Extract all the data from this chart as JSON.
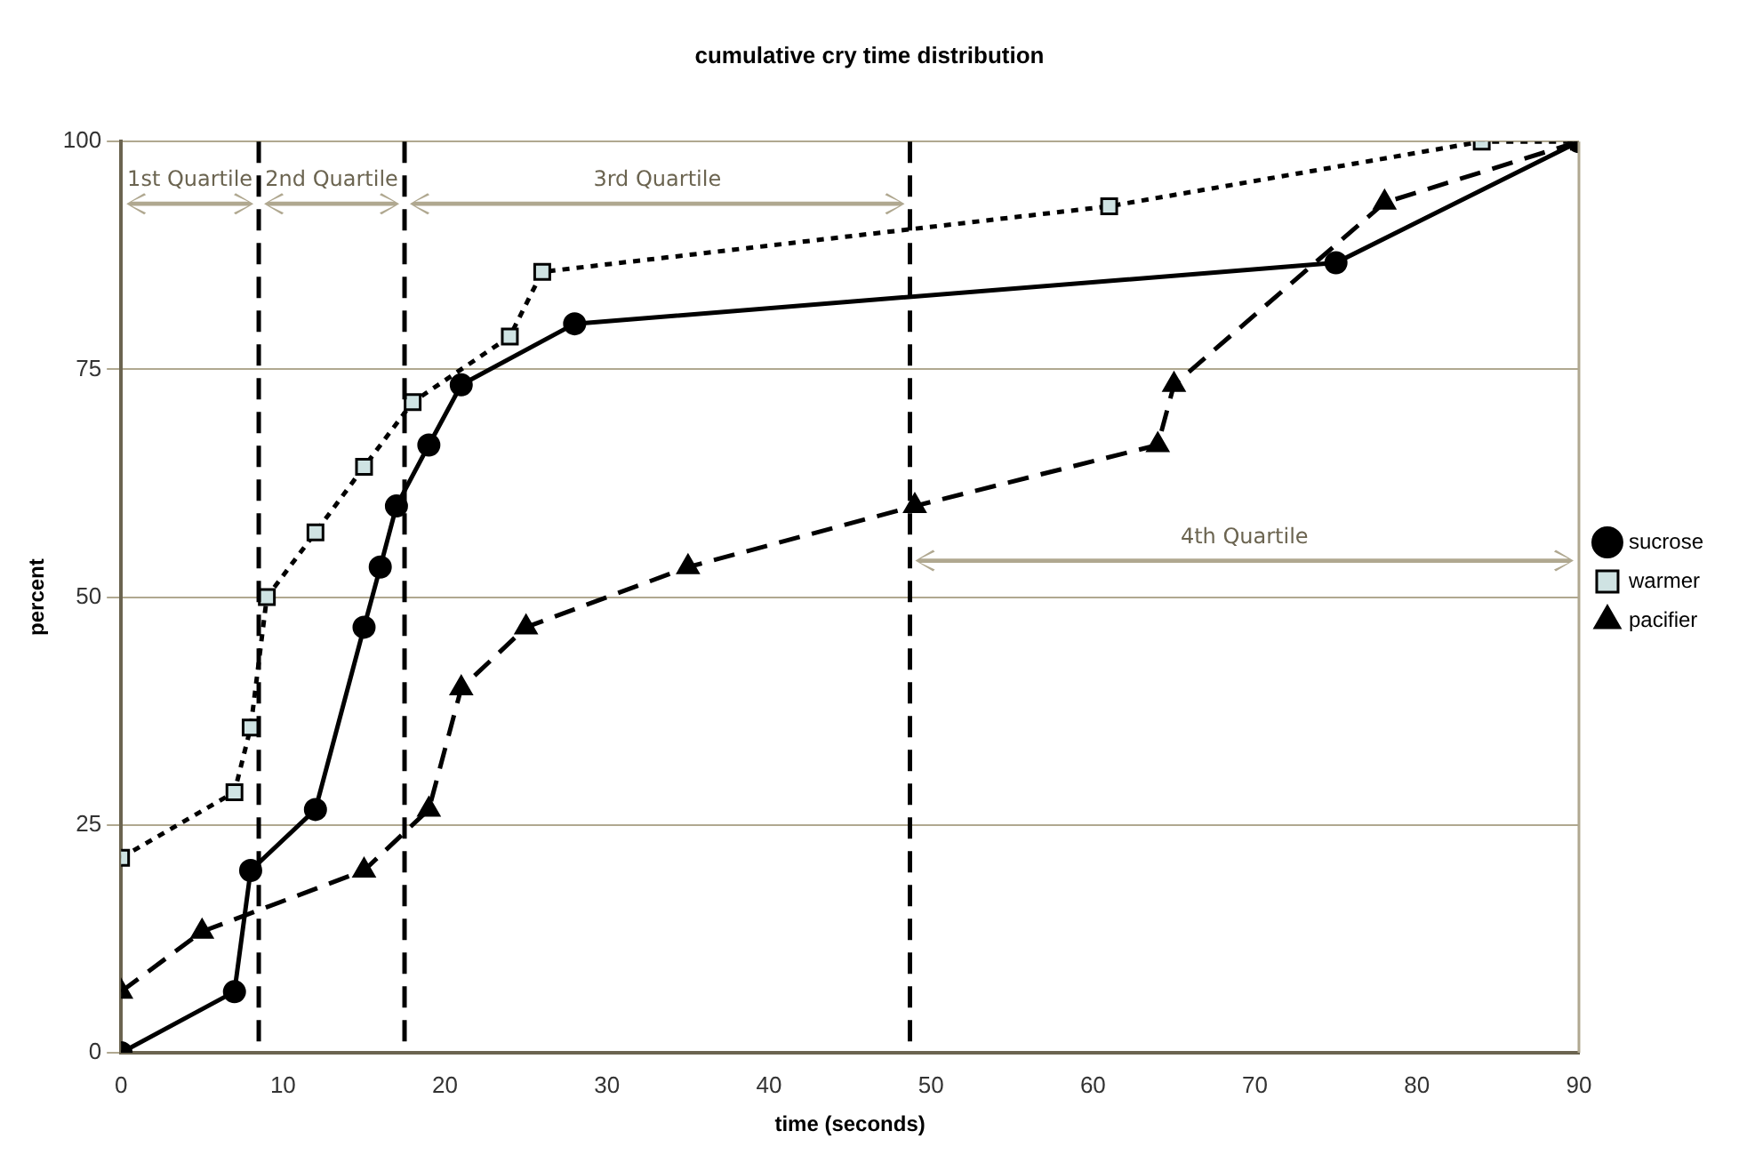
{
  "chart_data": {
    "type": "line",
    "title": "cumulative cry time distribution",
    "xlabel": "time (seconds)",
    "ylabel": "percent",
    "xlim": [
      0,
      90
    ],
    "xticks": [
      0,
      10,
      20,
      30,
      40,
      50,
      60,
      70,
      80,
      90
    ],
    "ylim": [
      0,
      100
    ],
    "yticks": [
      0,
      25,
      50,
      75,
      100
    ],
    "grid": "y",
    "legend": "right",
    "series": [
      {
        "name": "sucrose",
        "color": "#000000",
        "marker": "circle",
        "line_style": "solid",
        "x": [
          0,
          7,
          8,
          12,
          15,
          16,
          17,
          19,
          21,
          28,
          75,
          90
        ],
        "values": [
          0,
          6.7,
          20,
          26.7,
          46.7,
          53.3,
          60,
          66.7,
          73.3,
          80,
          86.7,
          100
        ]
      },
      {
        "name": "warmer",
        "color": "#000000",
        "marker": "square",
        "line_style": "dotted",
        "x": [
          0,
          7,
          8,
          9,
          12,
          15,
          18,
          24,
          26,
          61,
          84,
          90
        ],
        "values": [
          21.4,
          28.6,
          35.7,
          50,
          57.1,
          64.3,
          71.4,
          78.6,
          85.7,
          92.9,
          100,
          100
        ]
      },
      {
        "name": "pacifier",
        "color": "#000000",
        "marker": "triangle",
        "line_style": "dashed",
        "x": [
          0,
          5,
          15,
          19,
          21,
          25,
          35,
          49,
          64,
          65,
          78,
          90
        ],
        "values": [
          6.7,
          13.3,
          20,
          26.7,
          40,
          46.7,
          53.3,
          60,
          66.7,
          73.3,
          93.3,
          100
        ]
      }
    ],
    "ref_lines": [
      {
        "axis": "x",
        "value": 8.5,
        "color": "#000000",
        "line_style": "dashed"
      },
      {
        "axis": "x",
        "value": 17.5,
        "color": "#000000",
        "line_style": "dashed"
      },
      {
        "axis": "x",
        "value": 48.7,
        "color": "#000000",
        "line_style": "dashed"
      }
    ],
    "annotations": [
      "1st Quartile",
      "2nd Quartile",
      "3rd Quartile",
      "4th Quartile"
    ]
  }
}
